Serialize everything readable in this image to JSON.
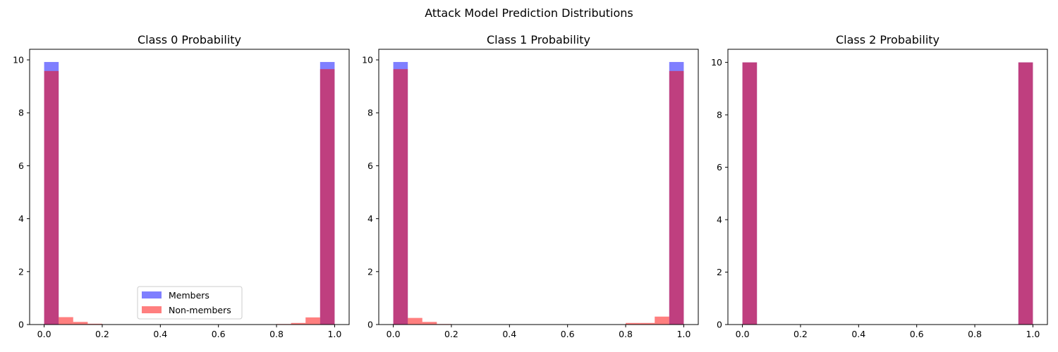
{
  "figure": {
    "suptitle": "Attack Model Prediction Distributions"
  },
  "chart_data": [
    {
      "type": "bar",
      "title": "Class 0 Probability",
      "xlabel": "",
      "ylabel": "",
      "xlim": [
        -0.05,
        1.05
      ],
      "ylim": [
        0,
        10.4
      ],
      "xticks": [
        0.0,
        0.2,
        0.4,
        0.6,
        0.8,
        1.0
      ],
      "yticks": [
        0,
        2,
        4,
        6,
        8,
        10
      ],
      "bin_edges": [
        0.0,
        0.05,
        0.1,
        0.15,
        0.2,
        0.25,
        0.3,
        0.35,
        0.4,
        0.45,
        0.5,
        0.55,
        0.6,
        0.65,
        0.7,
        0.75,
        0.8,
        0.85,
        0.9,
        0.95,
        1.0
      ],
      "grid": false,
      "legend": "lower-center",
      "series": [
        {
          "name": "Members",
          "color": "#0000ff",
          "alpha": 0.5,
          "values": [
            9.92,
            0,
            0,
            0,
            0,
            0,
            0,
            0,
            0,
            0,
            0,
            0,
            0,
            0,
            0,
            0,
            0,
            0,
            0,
            9.92
          ]
        },
        {
          "name": "Non-members",
          "color": "#ff0000",
          "alpha": 0.5,
          "values": [
            9.58,
            0.28,
            0.1,
            0.03,
            0,
            0,
            0,
            0,
            0,
            0,
            0,
            0,
            0,
            0,
            0,
            0,
            0.02,
            0.06,
            0.27,
            9.65
          ]
        }
      ]
    },
    {
      "type": "bar",
      "title": "Class 1 Probability",
      "xlabel": "",
      "ylabel": "",
      "xlim": [
        -0.05,
        1.05
      ],
      "ylim": [
        0,
        10.4
      ],
      "xticks": [
        0.0,
        0.2,
        0.4,
        0.6,
        0.8,
        1.0
      ],
      "yticks": [
        0,
        2,
        4,
        6,
        8,
        10
      ],
      "bin_edges": [
        0.0,
        0.05,
        0.1,
        0.15,
        0.2,
        0.25,
        0.3,
        0.35,
        0.4,
        0.45,
        0.5,
        0.55,
        0.6,
        0.65,
        0.7,
        0.75,
        0.8,
        0.85,
        0.9,
        0.95,
        1.0
      ],
      "grid": false,
      "legend": "none",
      "series": [
        {
          "name": "Members",
          "color": "#0000ff",
          "alpha": 0.5,
          "values": [
            9.92,
            0,
            0,
            0,
            0,
            0,
            0,
            0,
            0,
            0,
            0,
            0,
            0,
            0,
            0,
            0,
            0,
            0,
            0,
            9.92
          ]
        },
        {
          "name": "Non-members",
          "color": "#ff0000",
          "alpha": 0.5,
          "values": [
            9.65,
            0.25,
            0.1,
            0.02,
            0,
            0,
            0,
            0,
            0,
            0,
            0,
            0,
            0,
            0,
            0,
            0,
            0.06,
            0.06,
            0.3,
            9.58
          ]
        }
      ]
    },
    {
      "type": "bar",
      "title": "Class 2 Probability",
      "xlabel": "",
      "ylabel": "",
      "xlim": [
        -0.05,
        1.05
      ],
      "ylim": [
        0,
        10.5
      ],
      "xticks": [
        0.0,
        0.2,
        0.4,
        0.6,
        0.8,
        1.0
      ],
      "yticks": [
        0,
        2,
        4,
        6,
        8,
        10
      ],
      "bin_edges": [
        0.0,
        0.05,
        0.1,
        0.15,
        0.2,
        0.25,
        0.3,
        0.35,
        0.4,
        0.45,
        0.5,
        0.55,
        0.6,
        0.65,
        0.7,
        0.75,
        0.8,
        0.85,
        0.9,
        0.95,
        1.0
      ],
      "grid": false,
      "legend": "none",
      "series": [
        {
          "name": "Members",
          "color": "#0000ff",
          "alpha": 0.5,
          "values": [
            10,
            0,
            0,
            0,
            0,
            0,
            0,
            0,
            0,
            0,
            0,
            0,
            0,
            0,
            0,
            0,
            0,
            0,
            0,
            10
          ]
        },
        {
          "name": "Non-members",
          "color": "#ff0000",
          "alpha": 0.5,
          "values": [
            10,
            0,
            0,
            0,
            0,
            0,
            0,
            0,
            0,
            0,
            0,
            0,
            0,
            0,
            0,
            0,
            0,
            0,
            0,
            10
          ]
        }
      ]
    }
  ]
}
